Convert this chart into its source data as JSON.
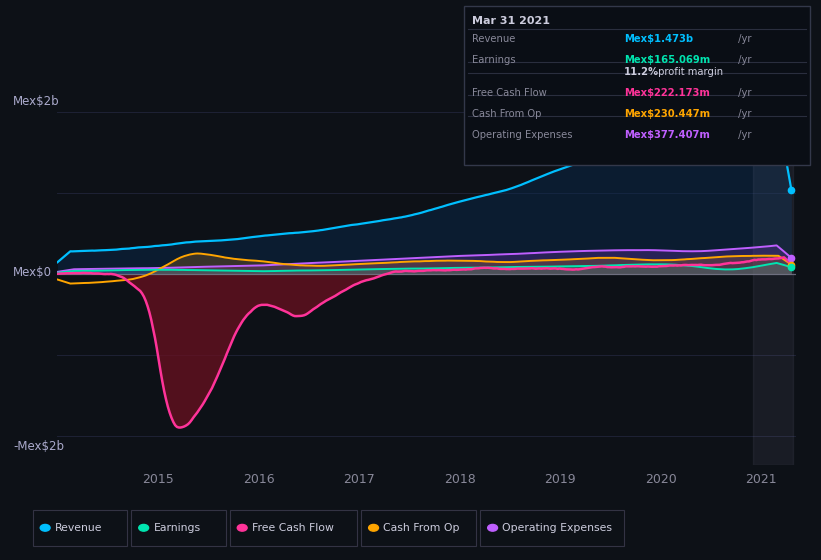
{
  "bg_color": "#0d1117",
  "plot_bg_color": "#0d1117",
  "ylabel_top": "Mex$2b",
  "ylabel_zero": "Mex$0",
  "ylabel_bottom": "-Mex$2b",
  "x_labels": [
    "2015",
    "2016",
    "2017",
    "2018",
    "2019",
    "2020",
    "2021"
  ],
  "legend_items": [
    {
      "label": "Revenue",
      "color": "#00bfff"
    },
    {
      "label": "Earnings",
      "color": "#00e5b0"
    },
    {
      "label": "Free Cash Flow",
      "color": "#ff3399"
    },
    {
      "label": "Cash From Op",
      "color": "#ffa500"
    },
    {
      "label": "Operating Expenses",
      "color": "#bf5fff"
    }
  ],
  "colors": {
    "revenue": "#00bfff",
    "earnings": "#00e5b0",
    "free_cash_flow": "#ff3399",
    "cash_from_op": "#ffa500",
    "operating_expenses": "#bf5fff"
  },
  "tooltip_date": "Mar 31 2021",
  "tooltip_rows": [
    {
      "label": "Revenue",
      "value": "Mex$1.473b",
      "unit": " /yr",
      "color": "#00bfff"
    },
    {
      "label": "Earnings",
      "value": "Mex$165.069m",
      "unit": " /yr",
      "color": "#00e5b0"
    },
    {
      "label": "",
      "value": "11.2%",
      "unit": " profit margin",
      "color": "#ffffff"
    },
    {
      "label": "Free Cash Flow",
      "value": "Mex$222.173m",
      "unit": " /yr",
      "color": "#ff3399"
    },
    {
      "label": "Cash From Op",
      "value": "Mex$230.447m",
      "unit": " /yr",
      "color": "#ffa500"
    },
    {
      "label": "Operating Expenses",
      "value": "Mex$377.407m",
      "unit": " /yr",
      "color": "#bf5fff"
    }
  ],
  "gray": "#888899",
  "white": "#ccccdd",
  "grid_color": "#1e2235",
  "zero_line_color": "#444455"
}
